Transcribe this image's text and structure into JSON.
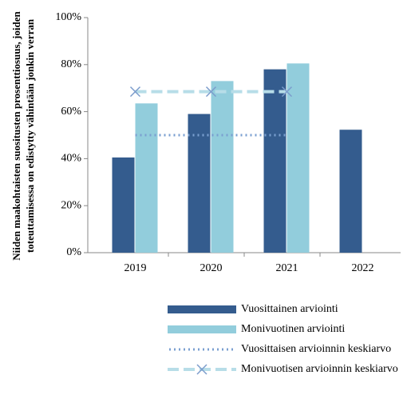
{
  "chart_data": {
    "type": "bar",
    "y_label": [
      "Niiden maakohtaisten suositusten prosenttiosuus, joiden",
      "toteuttamisessa on edistytty vähintään jonkin verran"
    ],
    "categories": [
      "2019",
      "2020",
      "2021",
      "2022"
    ],
    "series": [
      {
        "name": "Vuosittainen arviointi",
        "type": "bar",
        "color": "#345c8e",
        "values": [
          40.5,
          59,
          78,
          52.3
        ]
      },
      {
        "name": "Monivuotinen arviointi",
        "type": "bar",
        "color": "#92cddc",
        "values": [
          63.5,
          73,
          80.5,
          null
        ]
      },
      {
        "name": "Vuosittaisen arvioinnin keskiarvo",
        "type": "dotted-line",
        "color": "#7a9fd0",
        "values": [
          50,
          50,
          50,
          null
        ]
      },
      {
        "name": "Monivuotisen arvioinnin keskiarvo",
        "type": "dashed-line",
        "color": "#b7dde8",
        "marker_color": "#7b9ccc",
        "values": [
          68.5,
          68.5,
          68.5,
          null
        ]
      }
    ],
    "ylim": [
      0,
      100
    ],
    "yticks": [
      {
        "value": 0,
        "label": "0%"
      },
      {
        "value": 20,
        "label": "20%"
      },
      {
        "value": 40,
        "label": "40%"
      },
      {
        "value": 60,
        "label": "60%"
      },
      {
        "value": 80,
        "label": "80%"
      },
      {
        "value": 100,
        "label": "100%"
      }
    ],
    "legend": "bottom"
  }
}
